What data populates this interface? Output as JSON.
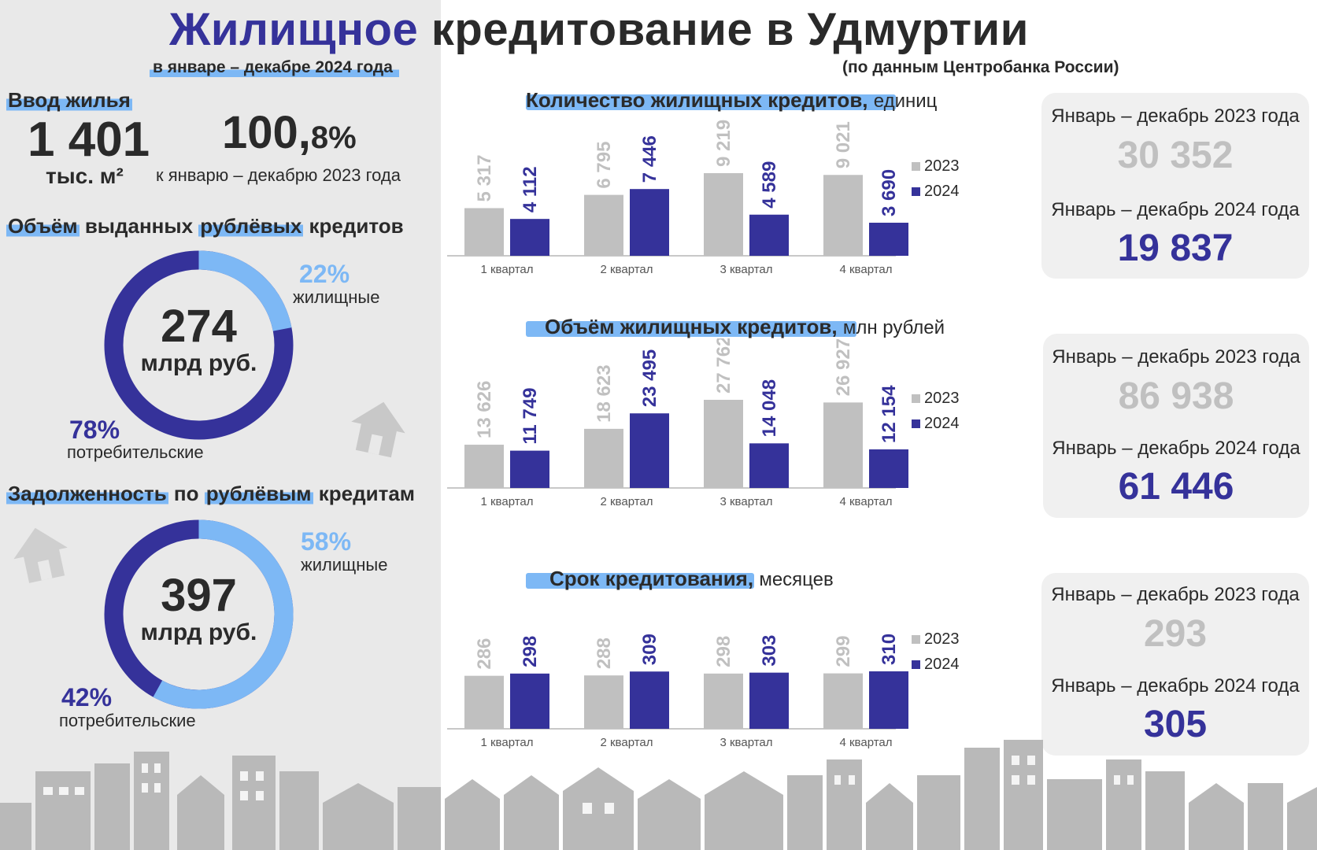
{
  "header": {
    "title_accent": "Жилищное",
    "title_rest": "кредитование в Удмуртии",
    "subtitle": "в январе – декабре 2024 года",
    "source": "(по данным Центробанка России)"
  },
  "housing": {
    "heading": "Ввод жилья",
    "value": "1 401",
    "unit": "тыс. м²",
    "pct_main": "100,",
    "pct_tail": "8%",
    "pct_caption": "к январю – декабрю 2023 года"
  },
  "issued": {
    "heading_parts": [
      "Объём",
      " выданных ",
      "рублёвых",
      " кредитов"
    ],
    "center_value": "274",
    "center_unit": "млрд руб.",
    "housing_pct": "22%",
    "housing_label": "жилищные",
    "consumer_pct": "78%",
    "consumer_label": "потребительские",
    "share_housing": 0.22
  },
  "debt": {
    "heading_parts": [
      "Задолженность",
      " по ",
      "рублёвым",
      " кредитам"
    ],
    "center_value": "397",
    "center_unit": "млрд руб.",
    "housing_pct": "58%",
    "housing_label": "жилищные",
    "consumer_pct": "42%",
    "consumer_label": "потребительские",
    "share_housing": 0.58
  },
  "colors": {
    "series_2023": "#c0c0c0",
    "series_2024": "#35329a",
    "light_blue": "#7db8f5",
    "card_value_2023": "#c0c0c0",
    "card_value_2024": "#35329a"
  },
  "chart_data": [
    {
      "type": "bar",
      "title": "Количество жилищных кредитов,",
      "unit": "единиц",
      "categories": [
        "1 квартал",
        "2 квартал",
        "3 квартал",
        "4 квартал"
      ],
      "series": [
        {
          "name": "2023",
          "values": [
            5317,
            6795,
            9219,
            9021
          ],
          "labels": [
            "5 317",
            "6 795",
            "9 219",
            "9 021"
          ]
        },
        {
          "name": "2024",
          "values": [
            4112,
            7446,
            4589,
            3690
          ],
          "labels": [
            "4 112",
            "7 446",
            "4 589",
            "3 690"
          ]
        }
      ],
      "legend": "right",
      "summary": [
        {
          "label": "Январь – декабрь 2023 года",
          "value": "30 352"
        },
        {
          "label": "Январь – декабрь 2024 года",
          "value": "19 837"
        }
      ]
    },
    {
      "type": "bar",
      "title": "Объём жилищных кредитов,",
      "unit": "млн рублей",
      "categories": [
        "1 квартал",
        "2 квартал",
        "3 квартал",
        "4 квартал"
      ],
      "series": [
        {
          "name": "2023",
          "values": [
            13626,
            18623,
            27762,
            26927
          ],
          "labels": [
            "13 626",
            "18 623",
            "27 762",
            "26 927"
          ]
        },
        {
          "name": "2024",
          "values": [
            11749,
            23495,
            14048,
            12154
          ],
          "labels": [
            "11 749",
            "23 495",
            "14 048",
            "12 154"
          ]
        }
      ],
      "legend": "right",
      "summary": [
        {
          "label": "Январь – декабрь 2023 года",
          "value": "86 938"
        },
        {
          "label": "Январь – декабрь 2024 года",
          "value": "61 446"
        }
      ]
    },
    {
      "type": "bar",
      "title": "Срок кредитования,",
      "unit": "месяцев",
      "categories": [
        "1 квартал",
        "2 квартал",
        "3 квартал",
        "4 квартал"
      ],
      "series": [
        {
          "name": "2023",
          "values": [
            286,
            288,
            298,
            299
          ],
          "labels": [
            "286",
            "288",
            "298",
            "299"
          ]
        },
        {
          "name": "2024",
          "values": [
            298,
            309,
            303,
            310
          ],
          "labels": [
            "298",
            "309",
            "303",
            "310"
          ]
        }
      ],
      "legend": "right",
      "summary": [
        {
          "label": "Январь – декабрь 2023 года",
          "value": "293"
        },
        {
          "label": "Январь – декабрь 2024 года",
          "value": "305"
        }
      ]
    }
  ]
}
